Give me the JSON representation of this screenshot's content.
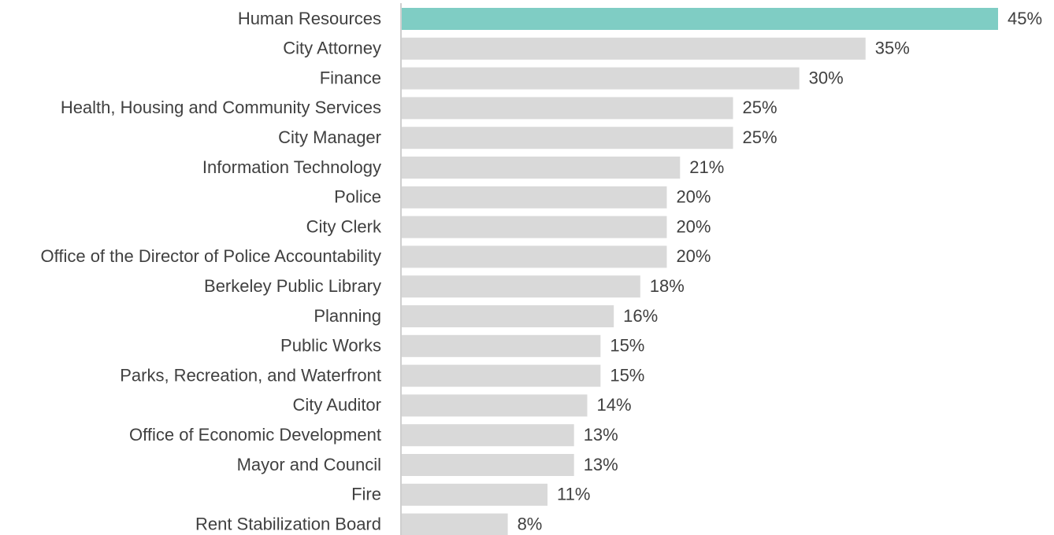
{
  "chart_data": {
    "type": "barh",
    "categories": [
      "Human Resources",
      "City Attorney",
      "Finance",
      "Health, Housing and Community Services",
      "City Manager",
      "Information Technology",
      "Police",
      "City Clerk",
      "Office of the Director of Police Accountability",
      "Berkeley Public Library",
      "Planning",
      "Public Works",
      "Parks, Recreation, and Waterfront",
      "City Auditor",
      "Office of Economic Development",
      "Mayor and Council",
      "Fire",
      "Rent Stabilization Board"
    ],
    "values": [
      45,
      35,
      30,
      25,
      25,
      21,
      20,
      20,
      20,
      18,
      16,
      15,
      15,
      14,
      13,
      13,
      11,
      8
    ],
    "value_labels": [
      "45%",
      "35%",
      "30%",
      "25%",
      "25%",
      "21%",
      "20%",
      "20%",
      "20%",
      "18%",
      "16%",
      "15%",
      "15%",
      "14%",
      "13%",
      "13%",
      "11%",
      "8%"
    ],
    "colors": [
      "#7fcdc4",
      "#d9d9d9",
      "#d9d9d9",
      "#d9d9d9",
      "#d9d9d9",
      "#d9d9d9",
      "#d9d9d9",
      "#d9d9d9",
      "#d9d9d9",
      "#d9d9d9",
      "#d9d9d9",
      "#d9d9d9",
      "#d9d9d9",
      "#d9d9d9",
      "#d9d9d9",
      "#d9d9d9",
      "#d9d9d9",
      "#d9d9d9"
    ]
  }
}
